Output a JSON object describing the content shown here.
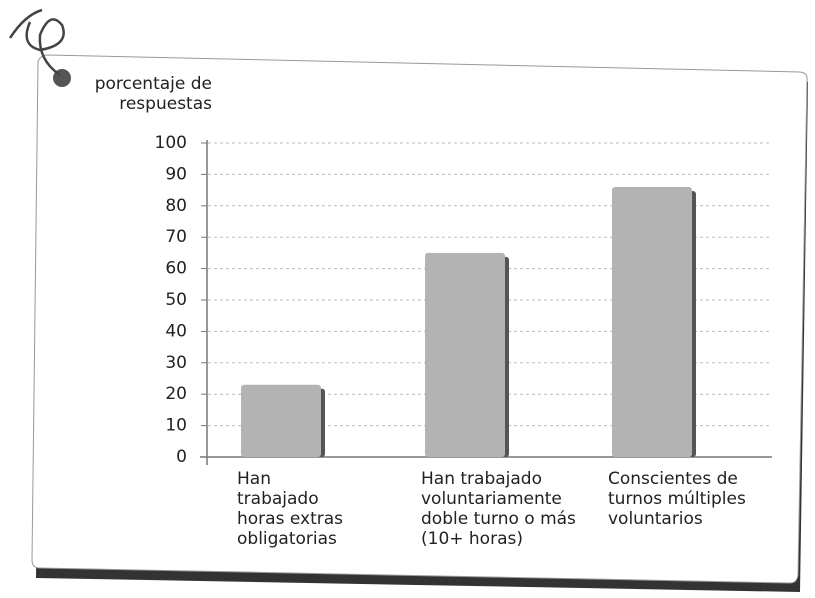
{
  "chart_data": {
    "type": "bar",
    "y_label": "porcentaje de respuestas",
    "categories": [
      "Han trabajado horas extras obligatorias",
      "Han trabajado voluntariamente doble turno o más (10+ horas)",
      "Conscientes de turnos múltiples voluntarios"
    ],
    "values": [
      23,
      65,
      86
    ],
    "color": "#b3b3b3",
    "ylim": [
      0,
      100
    ],
    "yticks": [
      0,
      10,
      20,
      30,
      40,
      50,
      60,
      70,
      80,
      90,
      100
    ],
    "grid": true
  }
}
